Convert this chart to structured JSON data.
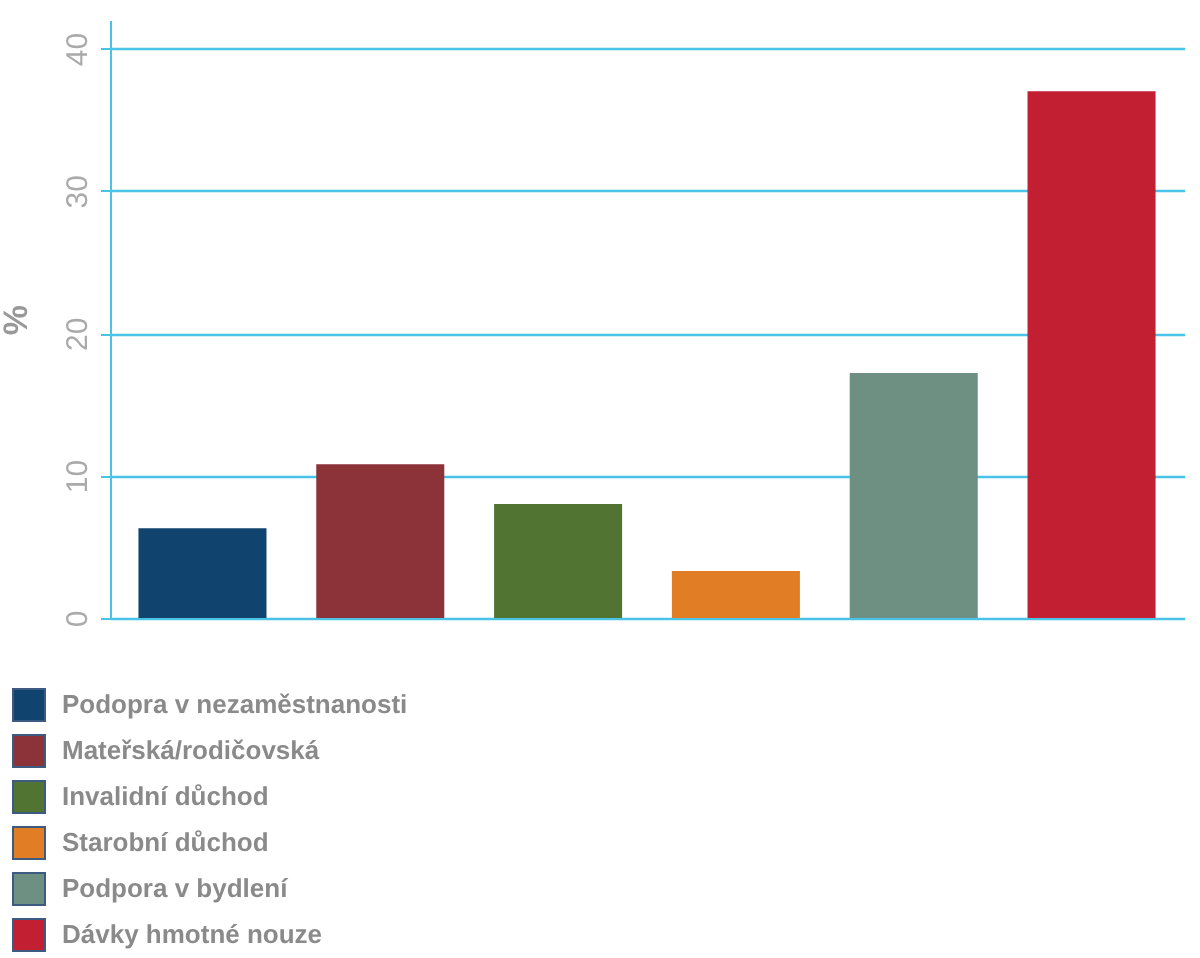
{
  "chart_data": {
    "type": "bar",
    "ylabel": "%",
    "stacked": true,
    "categories": [
      null,
      null,
      null,
      null,
      null,
      null
    ],
    "series": [
      {
        "name": "Podopra v nezaměstnanosti",
        "color": "#10446e",
        "values": [
          6.3,
          null,
          null,
          null,
          null,
          null
        ]
      },
      {
        "name": "Mateřská/rodičovská",
        "color": "#8c3239",
        "values": [
          null,
          10.8,
          null,
          null,
          null,
          null
        ]
      },
      {
        "name": "Invalidní důchod",
        "color": "#527433",
        "values": [
          null,
          null,
          8.0,
          null,
          null,
          null
        ]
      },
      {
        "name": "Starobní důchod",
        "color": "#e17d25",
        "values": [
          null,
          null,
          null,
          3.3,
          null,
          null
        ]
      },
      {
        "name": "Podpora v bydlení",
        "color": "#6d9083",
        "values": [
          null,
          null,
          null,
          null,
          17.2,
          null
        ]
      },
      {
        "name": "Dávky hmotné nouze",
        "color": "#c21f33",
        "values": [
          null,
          null,
          null,
          null,
          null,
          37.0
        ]
      }
    ],
    "ylim": [
      0,
      42
    ],
    "yticks": [
      0,
      10,
      20,
      30,
      40
    ],
    "grid": "y",
    "legend": "bottom",
    "tick_labels": "y"
  }
}
